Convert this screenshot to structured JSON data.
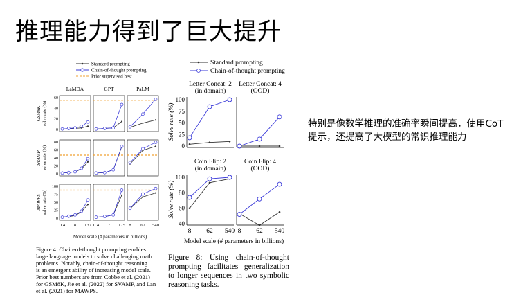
{
  "slide": {
    "title": "推理能力得到了巨大提升",
    "side_text": "特别是像数学推理的准确率瞬间提高，使用CoT提示，还提高了大模型的常识推理能力"
  },
  "figure4": {
    "legend": [
      "Standard prompting",
      "Chain-of-thought prompting",
      "Prior supervised best"
    ],
    "columns": [
      "LaMDA",
      "GPT",
      "PaLM"
    ],
    "rows": [
      {
        "dataset": "GSM8K",
        "ylabel": "solve rate (%)",
        "yticks": [
          "0",
          "20",
          "40",
          "60"
        ]
      },
      {
        "dataset": "SVAMP",
        "ylabel": "solve rate (%)",
        "yticks": [
          "0",
          "20",
          "40",
          "60",
          "80"
        ]
      },
      {
        "dataset": "MAWPS",
        "ylabel": "solve rate (%)",
        "yticks": [
          "0",
          "25",
          "50",
          "75",
          "100"
        ]
      }
    ],
    "xticks": {
      "LaMDA": [
        "0.4",
        "8",
        "137"
      ],
      "GPT": [
        "0.4",
        "7",
        "175"
      ],
      "PaLM": [
        "8",
        "62",
        "540"
      ]
    },
    "xlabel": "Model scale (# parameters in billions)",
    "caption_lines": [
      "Figure 4:   Chain-of-thought prompting enables",
      "large language models to solve challenging math",
      "problems.  Notably, chain-of-thought reasoning",
      "is an emergent ability of increasing model scale.",
      "Prior best numbers are from Cobbe et al. (2021)",
      "for GSM8K, Jie et al. (2022) for SVAMP, and Lan",
      "et al. (2021) for MAWPS."
    ]
  },
  "figure8": {
    "legend": [
      "Standard prompting",
      "Chain-of-thought prompting"
    ],
    "panels": [
      {
        "title": "Letter Concat: 2",
        "sub": "(in domain)"
      },
      {
        "title": "Letter Concat: 4",
        "sub": "(OOD)"
      },
      {
        "title": "Coin Flip: 2",
        "sub": "(in domain)"
      },
      {
        "title": "Coin Flip: 4",
        "sub": "(OOD)"
      }
    ],
    "ylabel": "Solve rate (%)",
    "yticks_top": [
      "0",
      "25",
      "50",
      "75",
      "100"
    ],
    "yticks_bottom": [
      "40",
      "60",
      "80",
      "100"
    ],
    "xticks": [
      "8",
      "62",
      "540"
    ],
    "xlabel": "Model scale (# parameters in billions)",
    "caption": "Figure 8:   Using chain-of-thought prompting facilitates generalization to longer sequences in two symbolic reasoning tasks."
  },
  "chart_data": [
    {
      "type": "line",
      "title": "Figure 4",
      "xlabel": "Model scale (# parameters in billions)",
      "ylabel": "solve rate (%)",
      "panels": [
        {
          "row": "GSM8K",
          "col": "LaMDA",
          "x": [
            "0.4",
            "2",
            "8",
            "68",
            "137"
          ],
          "ylim": [
            0,
            60
          ],
          "prior_best": 55,
          "series": [
            {
              "name": "Standard prompting",
              "values": [
                1,
                1,
                2,
                3,
                6
              ]
            },
            {
              "name": "Chain-of-thought prompting",
              "values": [
                1,
                2,
                3,
                6,
                14
              ]
            }
          ]
        },
        {
          "row": "GSM8K",
          "col": "GPT",
          "x": [
            "0.4",
            "1",
            "7",
            "175"
          ],
          "ylim": [
            0,
            60
          ],
          "prior_best": 55,
          "series": [
            {
              "name": "Standard prompting",
              "values": [
                1,
                2,
                3,
                15
              ]
            },
            {
              "name": "Chain-of-thought prompting",
              "values": [
                1,
                2,
                3,
                47
              ]
            }
          ]
        },
        {
          "row": "GSM8K",
          "col": "PaLM",
          "x": [
            "8",
            "62",
            "540"
          ],
          "ylim": [
            0,
            60
          ],
          "prior_best": 55,
          "series": [
            {
              "name": "Standard prompting",
              "values": [
                4,
                12,
                18
              ]
            },
            {
              "name": "Chain-of-thought prompting",
              "values": [
                5,
                29,
                57
              ]
            }
          ]
        },
        {
          "row": "SVAMP",
          "col": "LaMDA",
          "x": [
            "0.4",
            "2",
            "8",
            "68",
            "137"
          ],
          "ylim": [
            0,
            80
          ],
          "prior_best": 47,
          "series": [
            {
              "name": "Standard prompting",
              "values": [
                2,
                3,
                5,
                12,
                30
              ]
            },
            {
              "name": "Chain-of-thought prompting",
              "values": [
                2,
                3,
                5,
                14,
                38
              ]
            }
          ]
        },
        {
          "row": "SVAMP",
          "col": "GPT",
          "x": [
            "0.4",
            "1",
            "7",
            "175"
          ],
          "ylim": [
            0,
            80
          ],
          "prior_best": 47,
          "series": [
            {
              "name": "Standard prompting",
              "values": [
                2,
                3,
                10,
                68
              ]
            },
            {
              "name": "Chain-of-thought prompting",
              "values": [
                2,
                3,
                10,
                69
              ]
            }
          ]
        },
        {
          "row": "SVAMP",
          "col": "PaLM",
          "x": [
            "8",
            "62",
            "540"
          ],
          "ylim": [
            0,
            80
          ],
          "prior_best": 47,
          "series": [
            {
              "name": "Standard prompting",
              "values": [
                25,
                59,
                69
              ]
            },
            {
              "name": "Chain-of-thought prompting",
              "values": [
                28,
                63,
                79
              ]
            }
          ]
        },
        {
          "row": "MAWPS",
          "col": "LaMDA",
          "x": [
            "0.4",
            "2",
            "8",
            "68",
            "137"
          ],
          "ylim": [
            0,
            100
          ],
          "prior_best": 88,
          "series": [
            {
              "name": "Standard prompting",
              "values": [
                3,
                5,
                8,
                20,
                43
              ]
            },
            {
              "name": "Chain-of-thought prompting",
              "values": [
                3,
                6,
                10,
                22,
                57
              ]
            }
          ]
        },
        {
          "row": "MAWPS",
          "col": "GPT",
          "x": [
            "0.4",
            "1",
            "7",
            "175"
          ],
          "ylim": [
            0,
            100
          ],
          "prior_best": 88,
          "series": [
            {
              "name": "Standard prompting",
              "values": [
                3,
                5,
                10,
                72
              ]
            },
            {
              "name": "Chain-of-thought prompting",
              "values": [
                3,
                5,
                10,
                88
              ]
            }
          ]
        },
        {
          "row": "MAWPS",
          "col": "PaLM",
          "x": [
            "8",
            "62",
            "540"
          ],
          "ylim": [
            0,
            100
          ],
          "prior_best": 88,
          "series": [
            {
              "name": "Standard prompting",
              "values": [
                30,
                67,
                79
              ]
            },
            {
              "name": "Chain-of-thought prompting",
              "values": [
                31,
                76,
                93
              ]
            }
          ]
        }
      ],
      "colors": {
        "standard": "#333333",
        "cot": "#3b3bd9",
        "prior": "#f0a030"
      }
    },
    {
      "type": "line",
      "title": "Figure 8",
      "xlabel": "Model scale (# parameters in billions)",
      "ylabel": "Solve rate (%)",
      "x": [
        "8",
        "62",
        "540"
      ],
      "panels": [
        {
          "title": "Letter Concat: 2 (in domain)",
          "ylim": [
            0,
            100
          ],
          "series": [
            {
              "name": "Standard prompting",
              "values": [
                4,
                8,
                10
              ]
            },
            {
              "name": "Chain-of-thought prompting",
              "values": [
                18,
                85,
                100
              ]
            }
          ]
        },
        {
          "title": "Letter Concat: 4 (OOD)",
          "ylim": [
            0,
            100
          ],
          "series": [
            {
              "name": "Standard prompting",
              "values": [
                0,
                0,
                0
              ]
            },
            {
              "name": "Chain-of-thought prompting",
              "values": [
                0,
                15,
                63
              ]
            }
          ]
        },
        {
          "title": "Coin Flip: 2 (in domain)",
          "ylim": [
            40,
            100
          ],
          "series": [
            {
              "name": "Standard prompting",
              "values": [
                60,
                93,
                98
              ]
            },
            {
              "name": "Chain-of-thought prompting",
              "values": [
                74,
                98,
                100
              ]
            }
          ]
        },
        {
          "title": "Coin Flip: 4 (OOD)",
          "ylim": [
            40,
            100
          ],
          "series": [
            {
              "name": "Standard prompting",
              "values": [
                53,
                38,
                55
              ]
            },
            {
              "name": "Chain-of-thought prompting",
              "values": [
                52,
                72,
                91
              ]
            }
          ]
        }
      ],
      "colors": {
        "standard": "#333333",
        "cot": "#3b3bd9"
      }
    }
  ]
}
